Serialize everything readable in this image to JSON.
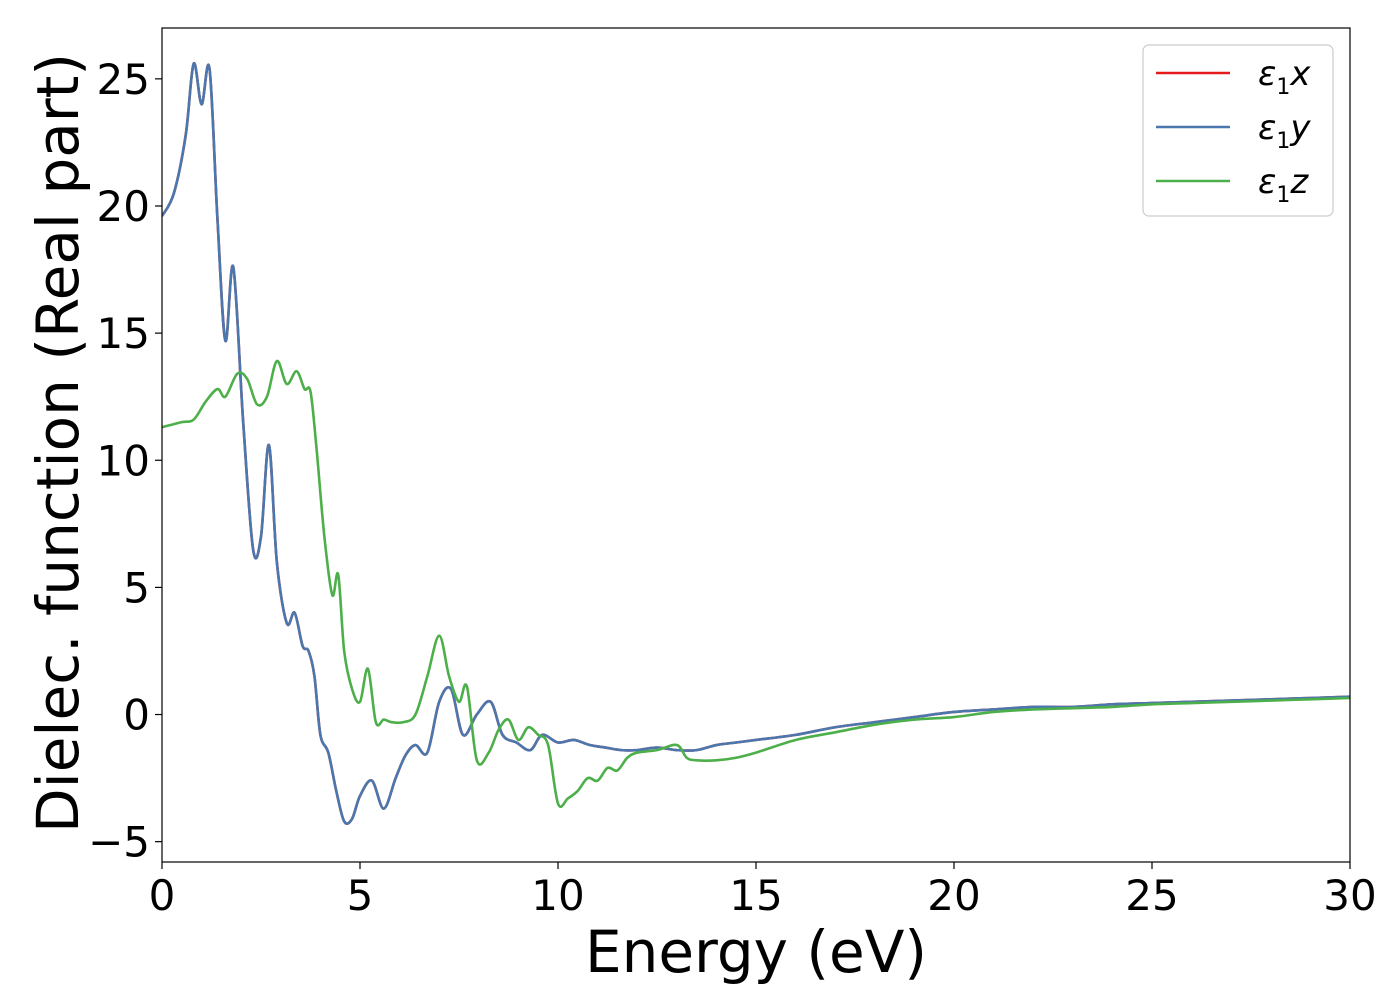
{
  "chart_data": {
    "type": "line",
    "xlabel": "Energy (eV)",
    "ylabel": "Dielec. function (Real part)",
    "xlim": [
      0,
      30
    ],
    "ylim": [
      -5.8,
      27
    ],
    "xticks": [
      0,
      5,
      10,
      15,
      20,
      25,
      30
    ],
    "yticks": [
      -5,
      0,
      5,
      10,
      15,
      20,
      25
    ],
    "xtick_labels": [
      "0",
      "5",
      "10",
      "15",
      "20",
      "25",
      "30"
    ],
    "ytick_labels": [
      "−5",
      "0",
      "5",
      "10",
      "15",
      "20",
      "25"
    ],
    "grid": false,
    "legend_position": "top-right",
    "series": [
      {
        "name": "ε1x",
        "legend_symbol": "ε",
        "legend_sub": "1",
        "legend_var": "x",
        "color": "#e41a1c",
        "x": [
          0,
          0.3,
          0.6,
          0.8,
          1.0,
          1.2,
          1.4,
          1.6,
          1.8,
          2.05,
          2.3,
          2.5,
          2.7,
          2.9,
          3.15,
          3.35,
          3.55,
          3.7,
          3.85,
          4.0,
          4.2,
          4.4,
          4.6,
          4.8,
          5.0,
          5.3,
          5.6,
          5.9,
          6.15,
          6.4,
          6.7,
          7.0,
          7.3,
          7.6,
          7.95,
          8.3,
          8.6,
          8.95,
          9.3,
          9.6,
          10.0,
          10.4,
          10.8,
          11.2,
          11.6,
          12.0,
          12.5,
          13.0,
          13.5,
          14.0,
          14.5,
          15.0,
          16.0,
          17.0,
          18.0,
          19.0,
          20.0,
          21.0,
          22.0,
          23.0,
          24.0,
          25.0,
          26.0,
          27.0,
          28.0,
          29.0,
          30.0
        ],
        "y": [
          19.6,
          20.5,
          22.8,
          25.6,
          24.0,
          25.4,
          19.5,
          14.7,
          17.6,
          11.5,
          6.5,
          7.0,
          10.6,
          6.0,
          3.6,
          4.0,
          2.7,
          2.5,
          1.5,
          -0.8,
          -1.5,
          -3.0,
          -4.2,
          -4.1,
          -3.2,
          -2.6,
          -3.7,
          -2.5,
          -1.6,
          -1.2,
          -1.5,
          0.5,
          1.0,
          -0.8,
          0.0,
          0.5,
          -0.8,
          -1.1,
          -1.4,
          -0.8,
          -1.1,
          -1.0,
          -1.2,
          -1.3,
          -1.4,
          -1.4,
          -1.3,
          -1.4,
          -1.4,
          -1.2,
          -1.1,
          -1.0,
          -0.8,
          -0.5,
          -0.3,
          -0.1,
          0.1,
          0.2,
          0.3,
          0.3,
          0.4,
          0.45,
          0.5,
          0.55,
          0.6,
          0.65,
          0.7
        ]
      },
      {
        "name": "ε1y",
        "legend_symbol": "ε",
        "legend_sub": "1",
        "legend_var": "y",
        "color": "#4a78ae",
        "x": [
          0,
          0.3,
          0.6,
          0.8,
          1.0,
          1.2,
          1.4,
          1.6,
          1.8,
          2.05,
          2.3,
          2.5,
          2.7,
          2.9,
          3.15,
          3.35,
          3.55,
          3.7,
          3.85,
          4.0,
          4.2,
          4.4,
          4.6,
          4.8,
          5.0,
          5.3,
          5.6,
          5.9,
          6.15,
          6.4,
          6.7,
          7.0,
          7.3,
          7.6,
          7.95,
          8.3,
          8.6,
          8.95,
          9.3,
          9.6,
          10.0,
          10.4,
          10.8,
          11.2,
          11.6,
          12.0,
          12.5,
          13.0,
          13.5,
          14.0,
          14.5,
          15.0,
          16.0,
          17.0,
          18.0,
          19.0,
          20.0,
          21.0,
          22.0,
          23.0,
          24.0,
          25.0,
          26.0,
          27.0,
          28.0,
          29.0,
          30.0
        ],
        "y": [
          19.6,
          20.5,
          22.8,
          25.6,
          24.0,
          25.4,
          19.5,
          14.7,
          17.6,
          11.5,
          6.5,
          7.0,
          10.6,
          6.0,
          3.6,
          4.0,
          2.7,
          2.5,
          1.5,
          -0.8,
          -1.5,
          -3.0,
          -4.2,
          -4.1,
          -3.2,
          -2.6,
          -3.7,
          -2.5,
          -1.6,
          -1.2,
          -1.5,
          0.5,
          1.0,
          -0.8,
          0.0,
          0.5,
          -0.8,
          -1.1,
          -1.4,
          -0.8,
          -1.1,
          -1.0,
          -1.2,
          -1.3,
          -1.4,
          -1.4,
          -1.3,
          -1.4,
          -1.4,
          -1.2,
          -1.1,
          -1.0,
          -0.8,
          -0.5,
          -0.3,
          -0.1,
          0.1,
          0.2,
          0.3,
          0.3,
          0.4,
          0.45,
          0.5,
          0.55,
          0.6,
          0.65,
          0.7
        ]
      },
      {
        "name": "ε1z",
        "legend_symbol": "ε",
        "legend_sub": "1",
        "legend_var": "z",
        "color": "#4daf4a",
        "x": [
          0,
          0.5,
          0.8,
          1.1,
          1.4,
          1.6,
          1.9,
          2.15,
          2.4,
          2.65,
          2.9,
          3.15,
          3.4,
          3.6,
          3.75,
          3.9,
          4.1,
          4.3,
          4.45,
          4.6,
          4.8,
          5.0,
          5.2,
          5.4,
          5.6,
          5.8,
          6.1,
          6.4,
          6.7,
          7.0,
          7.25,
          7.5,
          7.7,
          7.95,
          8.25,
          8.5,
          8.75,
          9.0,
          9.25,
          9.5,
          9.75,
          10.0,
          10.25,
          10.5,
          10.75,
          11.0,
          11.25,
          11.5,
          11.75,
          12.0,
          12.5,
          13.0,
          13.25,
          13.5,
          14.0,
          14.5,
          15.0,
          16.0,
          17.0,
          18.0,
          19.0,
          20.0,
          21.0,
          22.0,
          23.0,
          24.0,
          25.0,
          26.0,
          27.0,
          28.0,
          29.0,
          30.0
        ],
        "y": [
          11.3,
          11.5,
          11.6,
          12.3,
          12.8,
          12.5,
          13.4,
          13.2,
          12.2,
          12.5,
          13.9,
          13.0,
          13.5,
          12.8,
          12.7,
          10.5,
          7.0,
          4.7,
          5.5,
          2.5,
          1.0,
          0.5,
          1.8,
          -0.3,
          -0.2,
          -0.3,
          -0.3,
          0.0,
          1.5,
          3.1,
          1.5,
          0.5,
          1.1,
          -1.8,
          -1.5,
          -0.6,
          -0.2,
          -1.0,
          -0.5,
          -0.8,
          -1.2,
          -3.5,
          -3.3,
          -3.0,
          -2.5,
          -2.6,
          -2.1,
          -2.2,
          -1.7,
          -1.5,
          -1.4,
          -1.2,
          -1.7,
          -1.8,
          -1.8,
          -1.7,
          -1.5,
          -1.0,
          -0.7,
          -0.4,
          -0.2,
          -0.1,
          0.1,
          0.2,
          0.25,
          0.3,
          0.4,
          0.45,
          0.5,
          0.55,
          0.6,
          0.65
        ]
      }
    ]
  }
}
